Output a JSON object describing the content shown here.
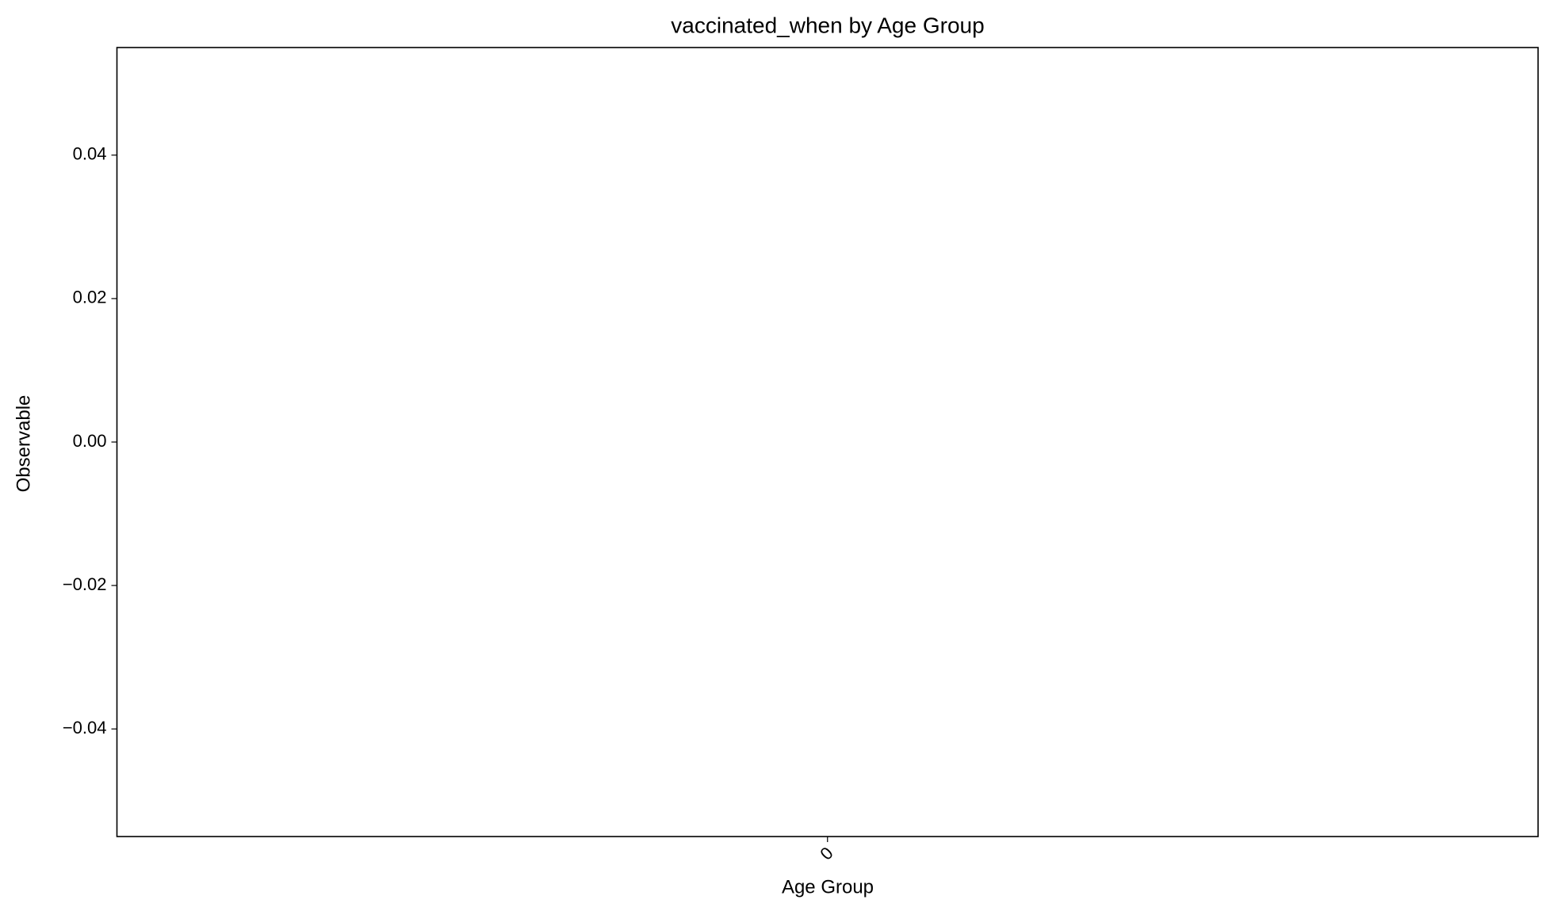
{
  "chart_data": {
    "type": "bar",
    "title": "vaccinated_when by Age Group",
    "xlabel": "Age Group",
    "ylabel": "Observable",
    "categories": [
      "0"
    ],
    "values": [
      0
    ],
    "color": "#1f77b4",
    "ylim": [
      -0.055,
      0.055
    ],
    "yticks": [
      {
        "value": -0.04,
        "label": "−0.04"
      },
      {
        "value": -0.02,
        "label": "−0.02"
      },
      {
        "value": 0,
        "label": "0.00"
      },
      0.02,
      0.04
    ],
    "grid": false
  }
}
